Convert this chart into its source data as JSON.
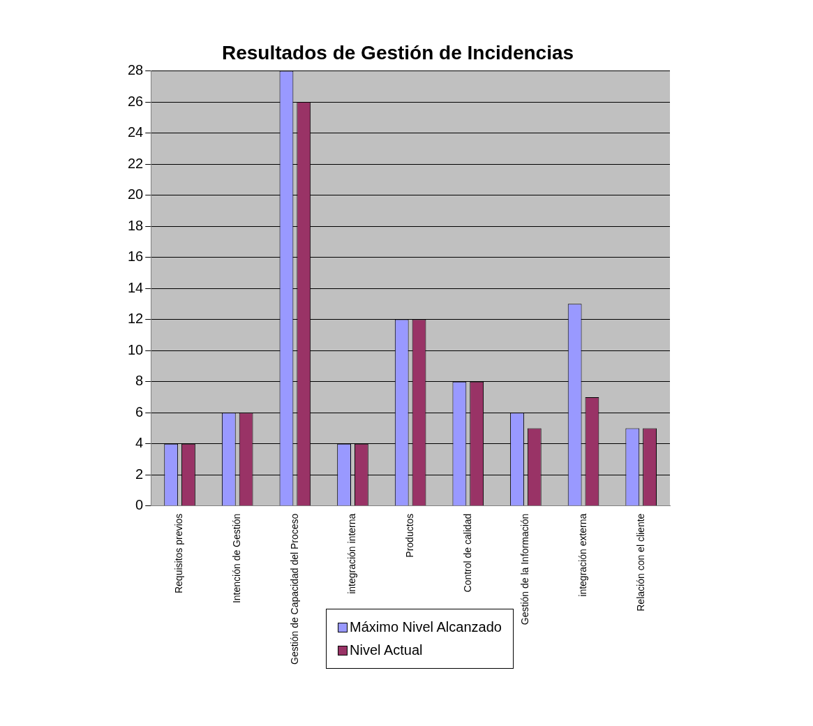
{
  "chart_data": {
    "type": "bar",
    "title": "Resultados de Gestión de Incidencias",
    "categories": [
      "Requisitos previos",
      "Intención de Gestión",
      "Gestión de Capacidad del Proceso",
      "integración interna",
      "Productos",
      "Control de calidad",
      "Gestión de la Información",
      "integración externa",
      "Relación con el cliente"
    ],
    "series": [
      {
        "name": "Máximo Nivel Alcanzado",
        "color": "#9999ff",
        "values": [
          4,
          6,
          28,
          4,
          12,
          8,
          6,
          13,
          5
        ]
      },
      {
        "name": "Nivel Actual",
        "color": "#993366",
        "values": [
          4,
          6,
          26,
          4,
          12,
          8,
          5,
          7,
          5
        ]
      }
    ],
    "ylim": [
      0,
      28
    ],
    "yticks": [
      0,
      2,
      4,
      6,
      8,
      10,
      12,
      14,
      16,
      18,
      20,
      22,
      24,
      26,
      28
    ],
    "grid": "y",
    "legend": "bottom"
  }
}
